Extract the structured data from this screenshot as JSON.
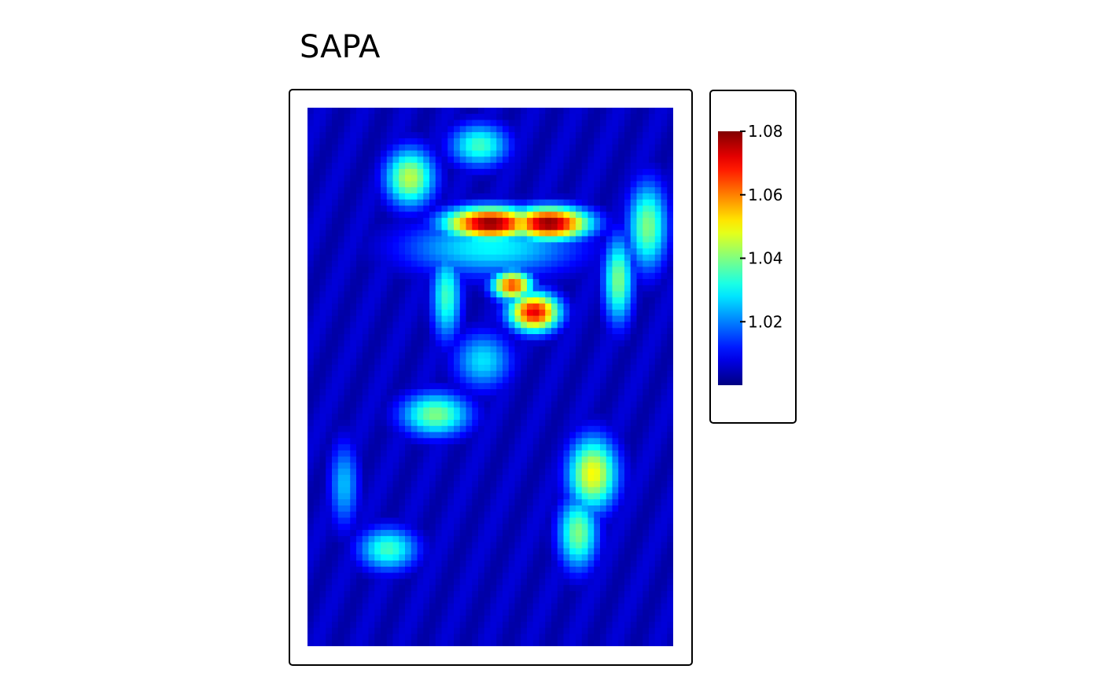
{
  "chart_data": {
    "type": "heatmap",
    "title": "SAPA",
    "xlabel": "",
    "ylabel": "",
    "grid": false,
    "axes_visible": false,
    "legend_position": "right",
    "colormap": "jet",
    "colorbar": {
      "ticks": [
        1.02,
        1.04,
        1.06,
        1.08
      ],
      "tick_labels": [
        "1.02",
        "1.04",
        "1.06",
        "1.08"
      ],
      "min": 1.0,
      "max": 1.08
    },
    "hotspots": [
      {
        "x": 0.5,
        "y": 0.215,
        "sx": 0.09,
        "sy": 0.022,
        "value": 1.08
      },
      {
        "x": 0.66,
        "y": 0.215,
        "sx": 0.08,
        "sy": 0.022,
        "value": 1.08
      },
      {
        "x": 0.56,
        "y": 0.33,
        "sx": 0.04,
        "sy": 0.02,
        "value": 1.065
      },
      {
        "x": 0.62,
        "y": 0.38,
        "sx": 0.05,
        "sy": 0.026,
        "value": 1.072
      },
      {
        "x": 0.28,
        "y": 0.13,
        "sx": 0.05,
        "sy": 0.04,
        "value": 1.045
      },
      {
        "x": 0.47,
        "y": 0.07,
        "sx": 0.06,
        "sy": 0.03,
        "value": 1.035
      },
      {
        "x": 0.93,
        "y": 0.22,
        "sx": 0.04,
        "sy": 0.06,
        "value": 1.04
      },
      {
        "x": 0.85,
        "y": 0.32,
        "sx": 0.03,
        "sy": 0.06,
        "value": 1.04
      },
      {
        "x": 0.38,
        "y": 0.35,
        "sx": 0.03,
        "sy": 0.06,
        "value": 1.035
      },
      {
        "x": 0.35,
        "y": 0.57,
        "sx": 0.07,
        "sy": 0.03,
        "value": 1.04
      },
      {
        "x": 0.78,
        "y": 0.68,
        "sx": 0.05,
        "sy": 0.05,
        "value": 1.05
      },
      {
        "x": 0.74,
        "y": 0.79,
        "sx": 0.04,
        "sy": 0.05,
        "value": 1.04
      },
      {
        "x": 0.22,
        "y": 0.82,
        "sx": 0.06,
        "sy": 0.03,
        "value": 1.035
      },
      {
        "x": 0.1,
        "y": 0.7,
        "sx": 0.03,
        "sy": 0.06,
        "value": 1.025
      },
      {
        "x": 0.48,
        "y": 0.47,
        "sx": 0.06,
        "sy": 0.04,
        "value": 1.028
      },
      {
        "x": 0.5,
        "y": 0.26,
        "sx": 0.18,
        "sy": 0.04,
        "value": 1.03
      }
    ]
  }
}
